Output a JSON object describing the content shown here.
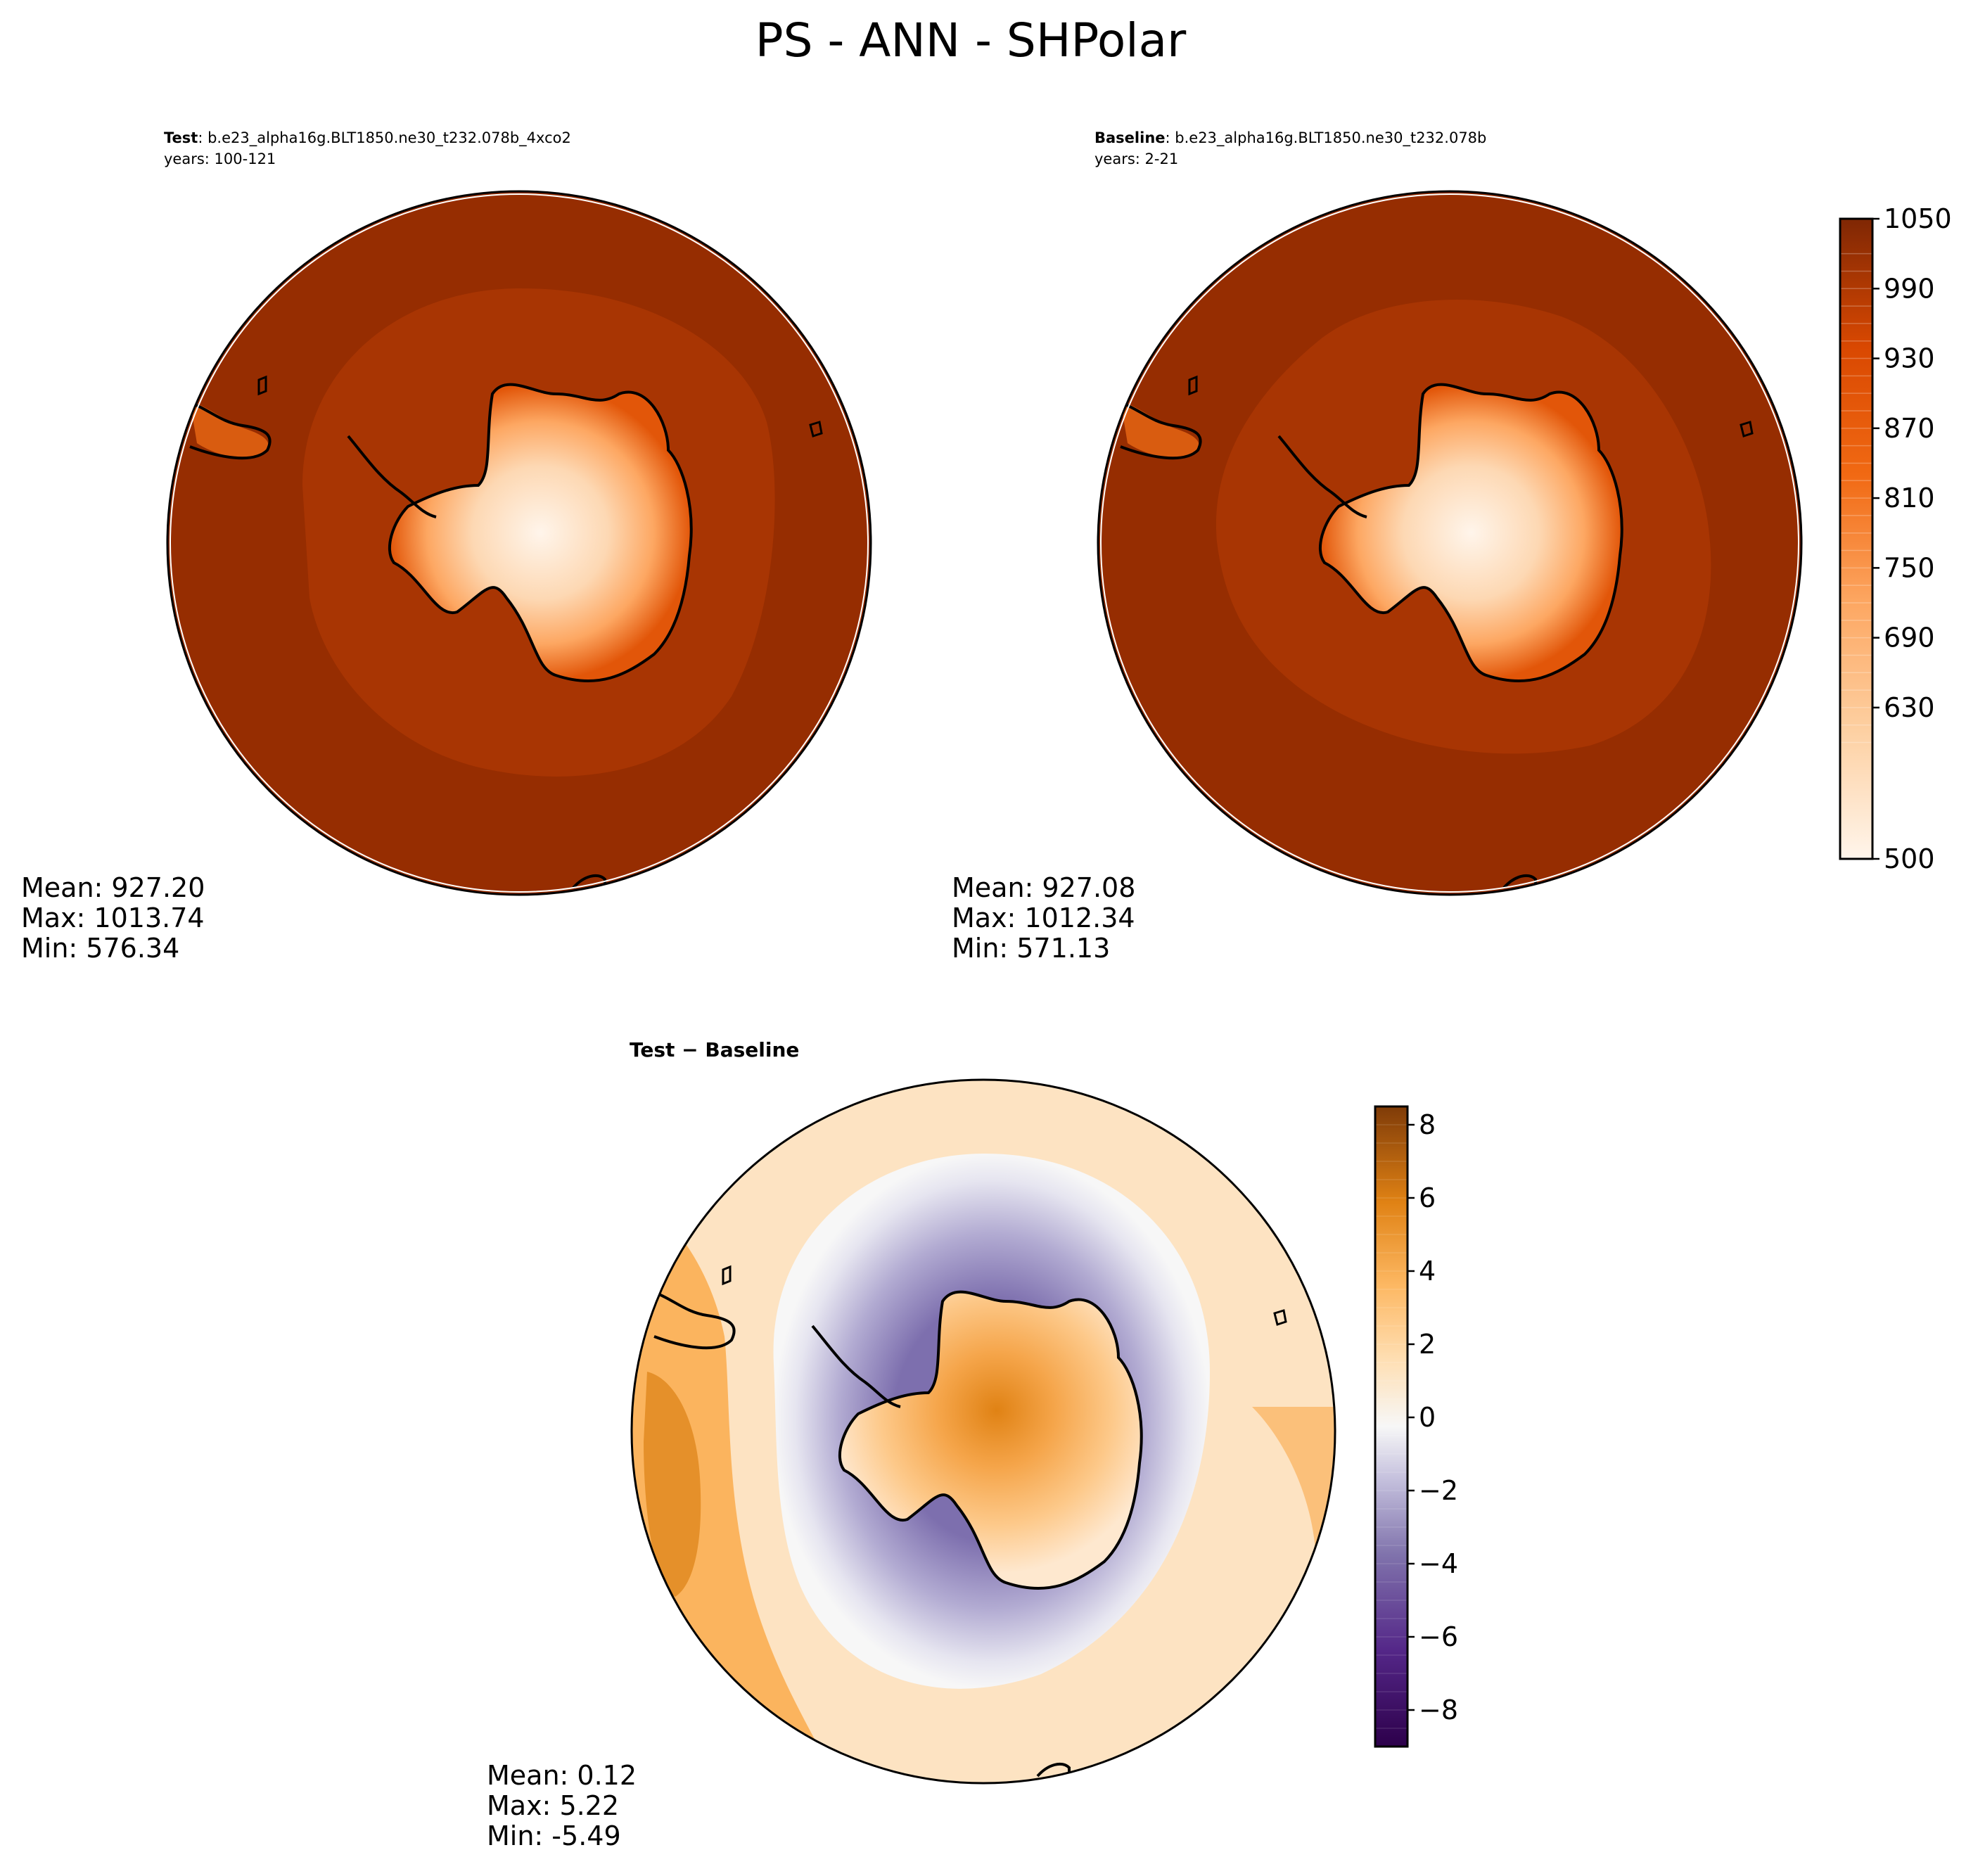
{
  "figure": {
    "title": "PS - ANN - SHPolar"
  },
  "colors": {
    "sequential": [
      "#fff5eb",
      "#fee8d3",
      "#fdd8b3",
      "#fdc28c",
      "#fda762",
      "#fb8d3d",
      "#f2701d",
      "#e25609",
      "#c44103",
      "#9f3303",
      "#7f2704"
    ],
    "diverging": [
      "#2d004b",
      "#542788",
      "#8073ac",
      "#b2abd2",
      "#d8daeb",
      "#f7f7f7",
      "#fee0b6",
      "#fdb863",
      "#e08214",
      "#b35806",
      "#7f3b08"
    ],
    "coastline": "#000000"
  },
  "chart_data": [
    {
      "type": "heatmap",
      "panel": "test",
      "projection": "south-polar-stereographic",
      "header_bold": "Test",
      "header_rest": ": b.e23_alpha16g.BLT1850.ne30_t232.078b_4xco2",
      "years_line": "years: 100-121",
      "stats": [
        "Mean: 927.20",
        "Max: 1013.74",
        "Min: 576.34"
      ],
      "mean": 927.2,
      "max": 1013.74,
      "min": 576.34,
      "value_range": [
        500,
        1050
      ]
    },
    {
      "type": "heatmap",
      "panel": "baseline",
      "projection": "south-polar-stereographic",
      "header_bold": "Baseline",
      "header_rest": ": b.e23_alpha16g.BLT1850.ne30_t232.078b",
      "years_line": "years: 2-21",
      "stats": [
        "Mean: 927.08",
        "Max: 1012.34",
        "Min: 571.13"
      ],
      "mean": 927.08,
      "max": 1012.34,
      "min": 571.13,
      "value_range": [
        500,
        1050
      ],
      "colorbar": {
        "range": [
          500,
          1050
        ],
        "ticks": [
          500,
          630,
          690,
          750,
          810,
          870,
          930,
          990,
          1050
        ],
        "levels": [
          500,
          600,
          615,
          630,
          645,
          660,
          675,
          690,
          705,
          720,
          735,
          750,
          765,
          780,
          795,
          810,
          825,
          840,
          855,
          870,
          885,
          900,
          915,
          930,
          945,
          960,
          975,
          990,
          1005,
          1020,
          1050
        ]
      }
    },
    {
      "type": "heatmap",
      "panel": "difference",
      "projection": "south-polar-stereographic",
      "header_bold": "Test − Baseline",
      "stats": [
        "Mean:  0.12",
        "Max:  5.22",
        "Min: -5.49"
      ],
      "mean": 0.12,
      "max": 5.22,
      "min": -5.49,
      "value_range": [
        -9,
        8.5
      ],
      "colorbar": {
        "range": [
          -9,
          8.5
        ],
        "ticks": [
          -8,
          -6,
          -4,
          -2,
          0,
          2,
          4,
          6,
          8
        ],
        "tick_labels": [
          "−8",
          "−6",
          "−4",
          "−2",
          "0",
          "2",
          "4",
          "6",
          "8"
        ]
      }
    }
  ]
}
